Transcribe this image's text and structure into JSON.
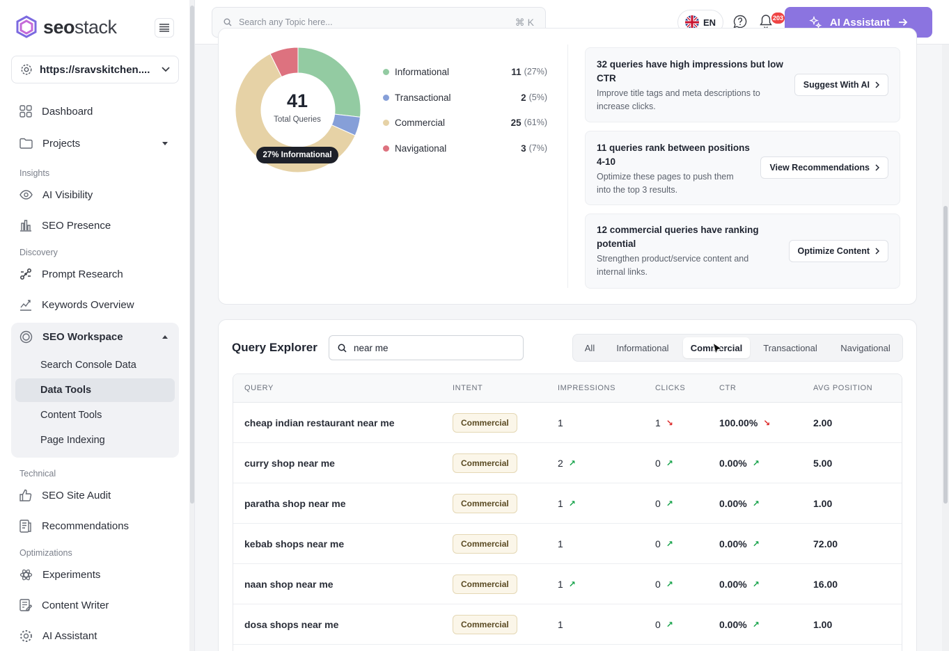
{
  "brand": {
    "name_bold": "seo",
    "name_light": "stack"
  },
  "site_selector": {
    "value": "https://sravskitchen...."
  },
  "nav": {
    "dashboard": "Dashboard",
    "projects": "Projects",
    "insights_label": "Insights",
    "ai_visibility": "AI Visibility",
    "seo_presence": "SEO Presence",
    "discovery_label": "Discovery",
    "prompt_research": "Prompt Research",
    "keywords_overview": "Keywords Overview",
    "seo_workspace": "SEO Workspace",
    "search_console_data": "Search Console Data",
    "data_tools": "Data Tools",
    "content_tools": "Content Tools",
    "page_indexing": "Page Indexing",
    "technical_label": "Technical",
    "seo_site_audit": "SEO Site Audit",
    "recommendations": "Recommendations",
    "optimizations_label": "Optimizations",
    "experiments": "Experiments",
    "content_writer": "Content Writer",
    "ai_assistant": "AI Assistant"
  },
  "topbar": {
    "search_placeholder": "Search any Topic here...",
    "shortcut": "⌘ K",
    "language": "EN",
    "notification_count": "203",
    "ai_button": "AI Assistant"
  },
  "intent_summary": {
    "total": "41",
    "total_label": "Total Queries",
    "highlight": "27% Informational",
    "segments": [
      {
        "name": "Informational",
        "count": "11",
        "pct": "(27%)",
        "value": 11,
        "color": "#93cba2"
      },
      {
        "name": "Transactional",
        "count": "2",
        "pct": "(5%)",
        "value": 2,
        "color": "#869fd8"
      },
      {
        "name": "Commercial",
        "count": "25",
        "pct": "(61%)",
        "value": 25,
        "color": "#e6d2a6"
      },
      {
        "name": "Navigational",
        "count": "3",
        "pct": "(7%)",
        "value": 3,
        "color": "#dd727f"
      }
    ]
  },
  "insights": [
    {
      "title": "32 queries have high impressions but low CTR",
      "desc": "Improve title tags and meta descriptions to increase clicks.",
      "action": "Suggest With AI"
    },
    {
      "title": "11 queries rank between positions 4-10",
      "desc": "Optimize these pages to push them into the top 3 results.",
      "action": "View Recommendations"
    },
    {
      "title": "12 commercial queries have ranking potential",
      "desc": "Strengthen product/service content and internal links.",
      "action": "Optimize Content"
    }
  ],
  "query_explorer": {
    "title": "Query Explorer",
    "search_value": "near me",
    "tabs": [
      "All",
      "Informational",
      "Commercial",
      "Transactional",
      "Navigational"
    ],
    "active_tab": "Commercial",
    "columns": [
      "QUERY",
      "INTENT",
      "IMPRESSIONS",
      "CLICKS",
      "CTR",
      "AVG POSITION"
    ],
    "rows": [
      {
        "query": "cheap indian restaurant near me",
        "intent": "Commercial",
        "impressions": "1",
        "imp_trend": "",
        "clicks": "1",
        "clicks_trend": "↘",
        "ctr": "100.00%",
        "ctr_trend": "↘",
        "position": "2.00"
      },
      {
        "query": "curry shop near me",
        "intent": "Commercial",
        "impressions": "2",
        "imp_trend": "↗",
        "clicks": "0",
        "clicks_trend": "↗",
        "ctr": "0.00%",
        "ctr_trend": "↗",
        "position": "5.00"
      },
      {
        "query": "paratha shop near me",
        "intent": "Commercial",
        "impressions": "1",
        "imp_trend": "↗",
        "clicks": "0",
        "clicks_trend": "↗",
        "ctr": "0.00%",
        "ctr_trend": "↗",
        "position": "1.00"
      },
      {
        "query": "kebab shops near me",
        "intent": "Commercial",
        "impressions": "1",
        "imp_trend": "",
        "clicks": "0",
        "clicks_trend": "↗",
        "ctr": "0.00%",
        "ctr_trend": "↗",
        "position": "72.00"
      },
      {
        "query": "naan shop near me",
        "intent": "Commercial",
        "impressions": "1",
        "imp_trend": "↗",
        "clicks": "0",
        "clicks_trend": "↗",
        "ctr": "0.00%",
        "ctr_trend": "↗",
        "position": "16.00"
      },
      {
        "query": "dosa shops near me",
        "intent": "Commercial",
        "impressions": "1",
        "imp_trend": "",
        "clicks": "0",
        "clicks_trend": "↗",
        "ctr": "0.00%",
        "ctr_trend": "↗",
        "position": "1.00"
      }
    ]
  }
}
